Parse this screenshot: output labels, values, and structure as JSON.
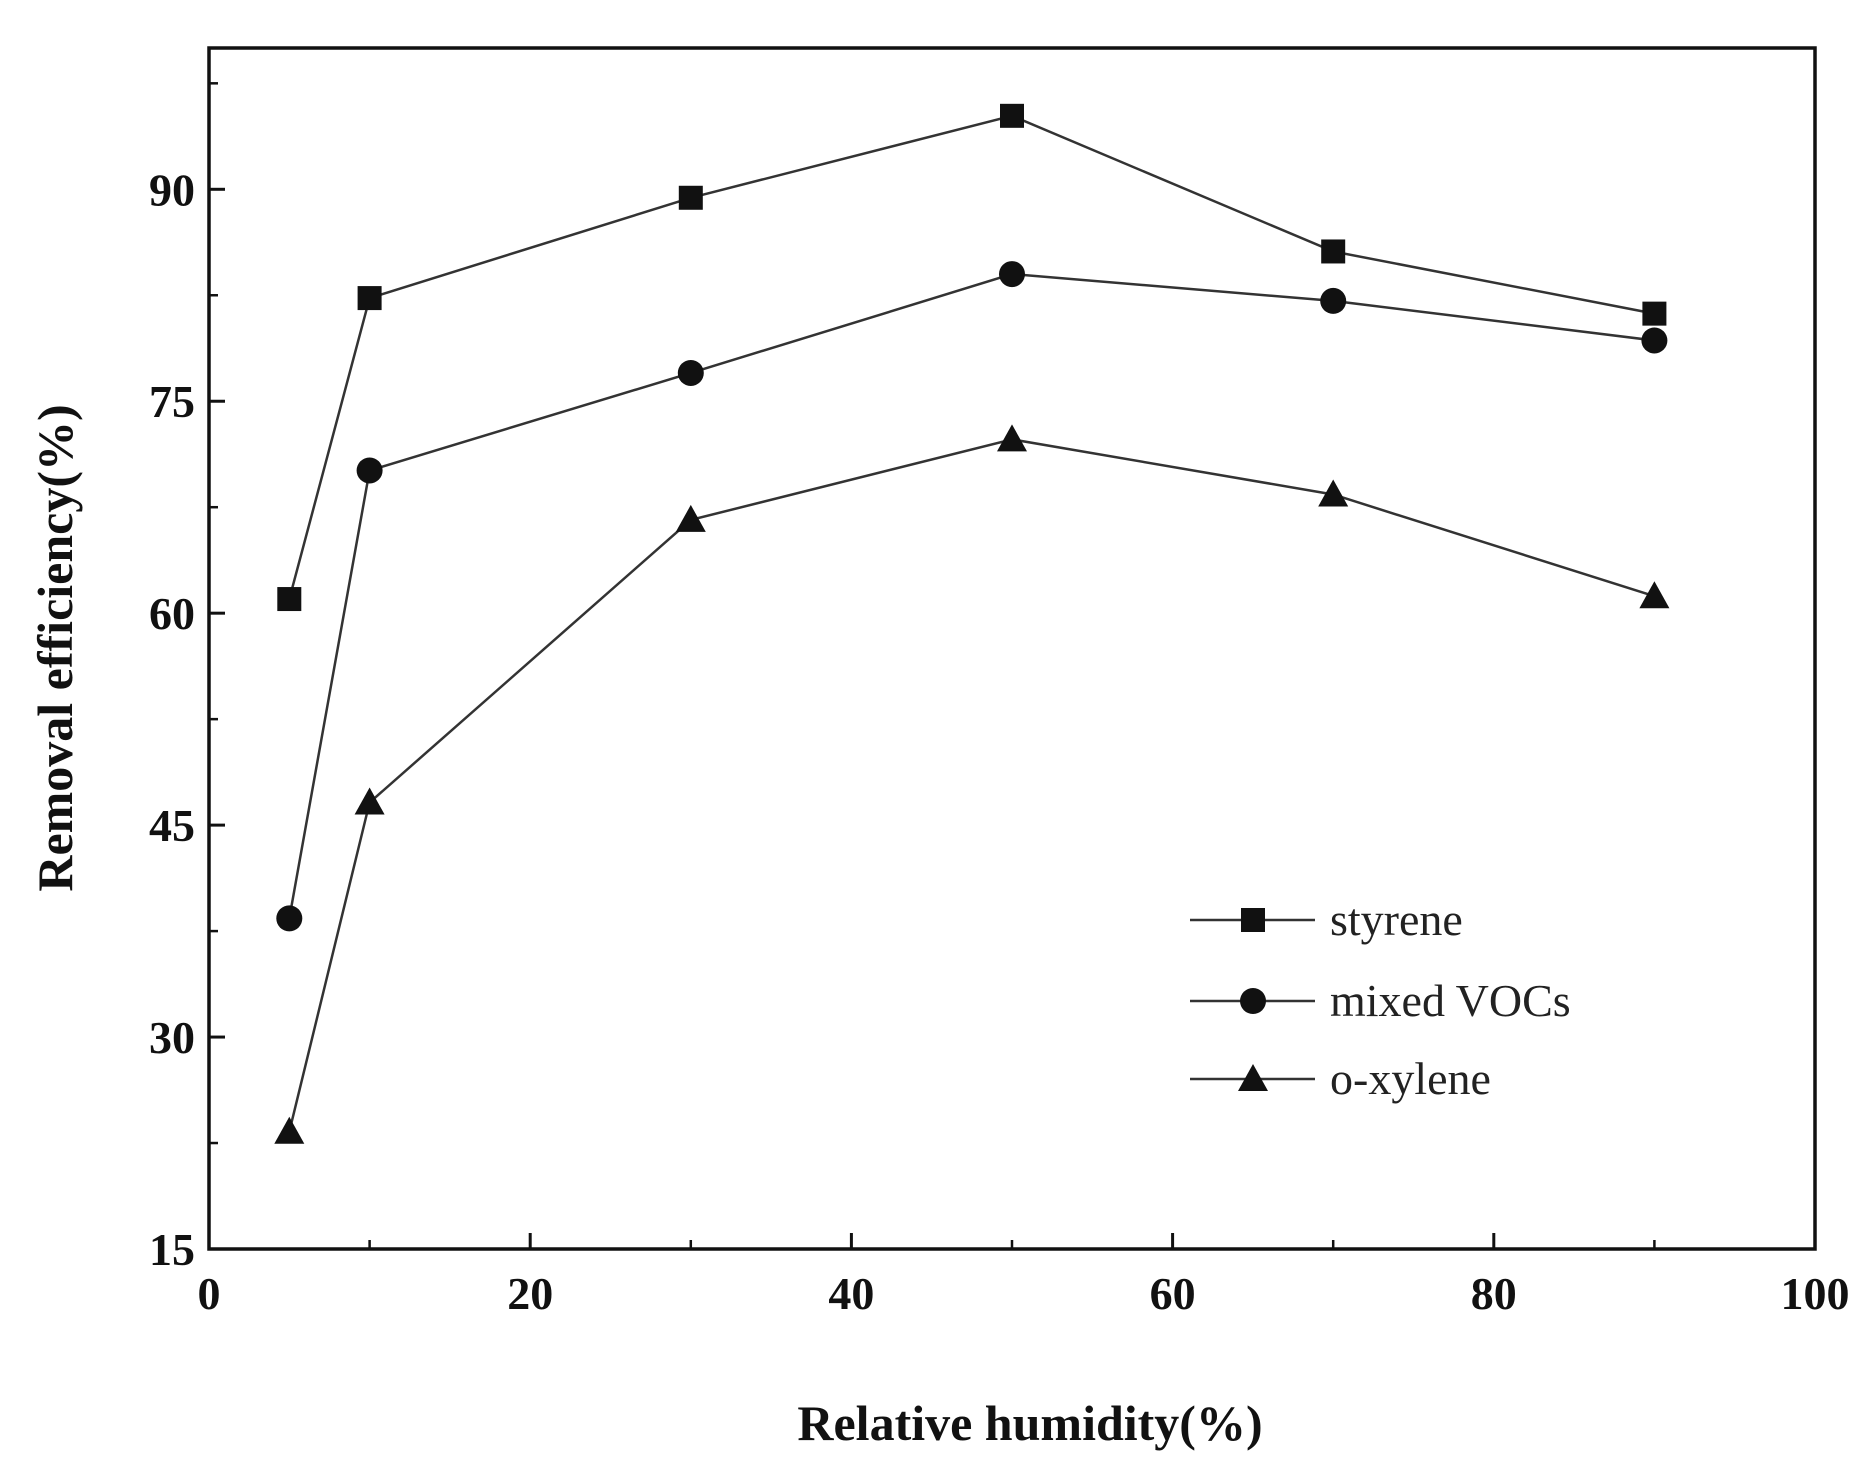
{
  "chart_data": {
    "type": "line",
    "title": "",
    "xlabel": "Relative  humidity(%)",
    "ylabel": "Removal efficiency(%)",
    "xlim": [
      0,
      100
    ],
    "ylim": [
      15,
      100
    ],
    "xticks": [
      0,
      20,
      40,
      60,
      80,
      100
    ],
    "xtick_labels": [
      "0",
      "20",
      "40",
      "60",
      "80",
      "100"
    ],
    "yticks": [
      15,
      30,
      45,
      60,
      75,
      90
    ],
    "ytick_labels": [
      "15",
      "30",
      "45",
      "60",
      "75",
      "90"
    ],
    "grid": false,
    "legend_position": "lower-right",
    "x": [
      5,
      10,
      30,
      50,
      70,
      90
    ],
    "series": [
      {
        "name": "styrene",
        "marker": "square",
        "values": [
          61,
          82.3,
          89.4,
          95.2,
          85.6,
          81.2
        ]
      },
      {
        "name": "mixed VOCs",
        "marker": "circle",
        "values": [
          38.4,
          70.1,
          77,
          84,
          82.1,
          79.3
        ]
      },
      {
        "name": "o-xylene",
        "marker": "triangle",
        "values": [
          23.3,
          46.6,
          66.6,
          72.3,
          68.4,
          61.2
        ]
      }
    ]
  }
}
